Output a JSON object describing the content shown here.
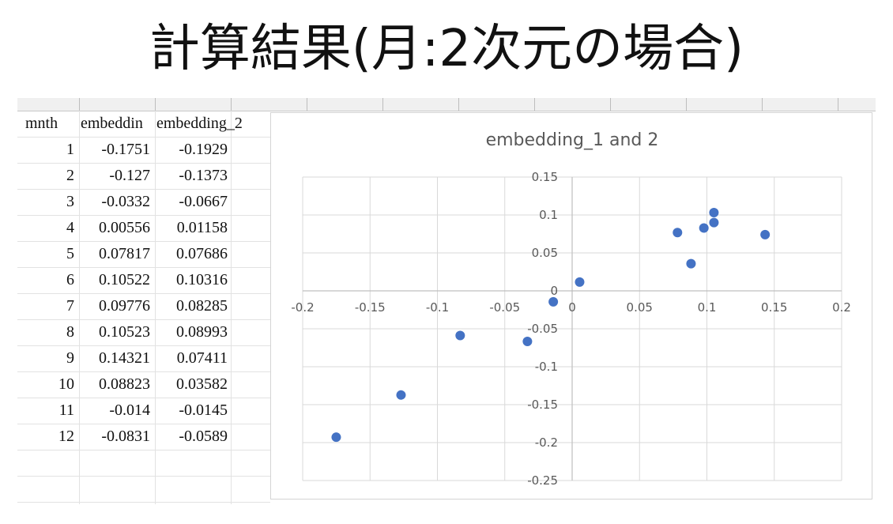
{
  "page_title": "計算結果(月:2次元の場合)",
  "table": {
    "headers": [
      "mnth",
      "embeddin",
      "embedding_2"
    ],
    "rows": [
      {
        "mnth": "1",
        "e1": "-0.1751",
        "e2": "-0.1929"
      },
      {
        "mnth": "2",
        "e1": "-0.127",
        "e2": "-0.1373"
      },
      {
        "mnth": "3",
        "e1": "-0.0332",
        "e2": "-0.0667"
      },
      {
        "mnth": "4",
        "e1": "0.00556",
        "e2": "0.01158"
      },
      {
        "mnth": "5",
        "e1": "0.07817",
        "e2": "0.07686"
      },
      {
        "mnth": "6",
        "e1": "0.10522",
        "e2": "0.10316"
      },
      {
        "mnth": "7",
        "e1": "0.09776",
        "e2": "0.08285"
      },
      {
        "mnth": "8",
        "e1": "0.10523",
        "e2": "0.08993"
      },
      {
        "mnth": "9",
        "e1": "0.14321",
        "e2": "0.07411"
      },
      {
        "mnth": "10",
        "e1": "0.08823",
        "e2": "0.03582"
      },
      {
        "mnth": "11",
        "e1": "-0.014",
        "e2": "-0.0145"
      },
      {
        "mnth": "12",
        "e1": "-0.0831",
        "e2": "-0.0589"
      }
    ]
  },
  "chart_data": {
    "type": "scatter",
    "title": "embedding_1 and 2",
    "xlabel": "",
    "ylabel": "",
    "xlim": [
      -0.2,
      0.2
    ],
    "ylim": [
      -0.25,
      0.15
    ],
    "xticks": [
      -0.2,
      -0.15,
      -0.1,
      -0.05,
      0,
      0.05,
      0.1,
      0.15,
      0.2
    ],
    "xtick_labels": [
      "-0.2",
      "-0.15",
      "-0.1",
      "-0.05",
      "0",
      "0.05",
      "0.1",
      "0.15",
      "0.2"
    ],
    "yticks": [
      -0.25,
      -0.2,
      -0.15,
      -0.1,
      -0.05,
      0,
      0.05,
      0.1,
      0.15
    ],
    "ytick_labels": [
      "-0.25",
      "-0.2",
      "-0.15",
      "-0.1",
      "-0.05",
      "0",
      "0.05",
      "0.1",
      "0.15"
    ],
    "grid": true,
    "legend": "none",
    "marker_color": "#4472c4",
    "points": [
      {
        "x": -0.1751,
        "y": -0.1929
      },
      {
        "x": -0.127,
        "y": -0.1373
      },
      {
        "x": -0.0332,
        "y": -0.0667
      },
      {
        "x": 0.00556,
        "y": 0.01158
      },
      {
        "x": 0.07817,
        "y": 0.07686
      },
      {
        "x": 0.10522,
        "y": 0.10316
      },
      {
        "x": 0.09776,
        "y": 0.08285
      },
      {
        "x": 0.10523,
        "y": 0.08993
      },
      {
        "x": 0.14321,
        "y": 0.07411
      },
      {
        "x": 0.08823,
        "y": 0.03582
      },
      {
        "x": -0.014,
        "y": -0.0145
      },
      {
        "x": -0.0831,
        "y": -0.0589
      }
    ]
  }
}
